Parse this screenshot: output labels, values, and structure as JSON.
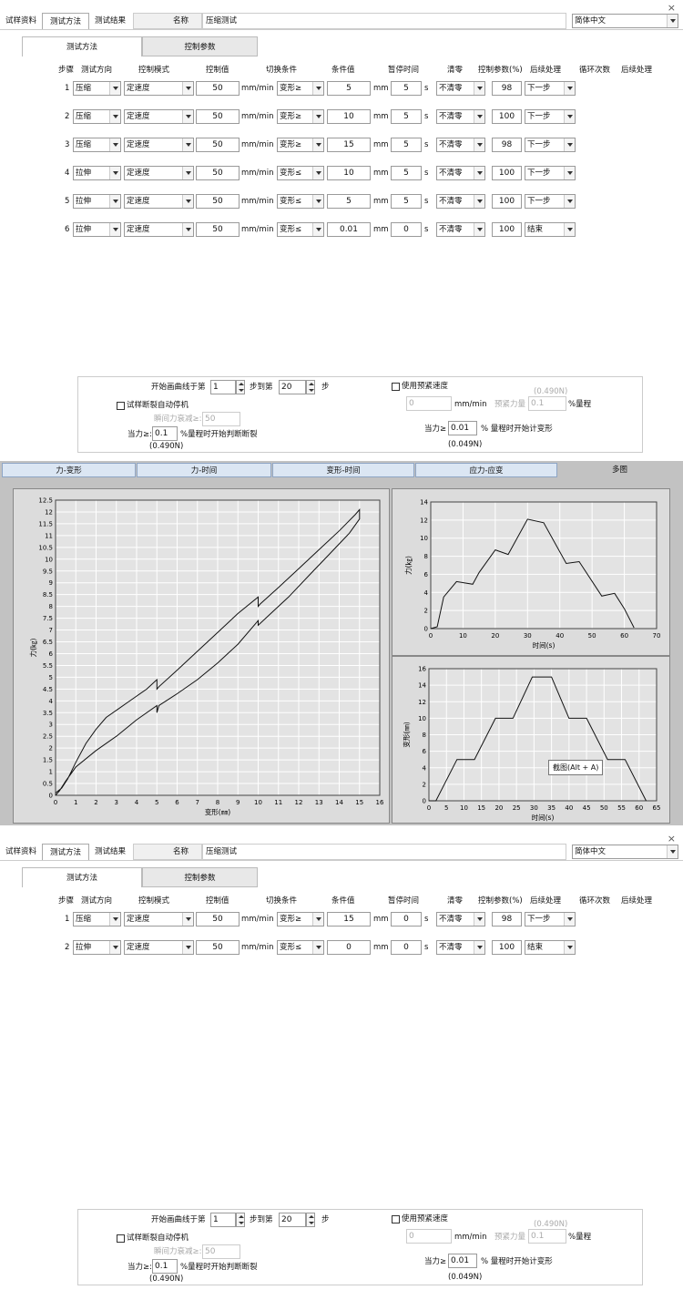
{
  "top": {
    "tabs": [
      "试样资料",
      "测试方法",
      "测试结果"
    ],
    "name_label": "名称",
    "name_value": "压缩测试",
    "language": "简体中文",
    "subtabs": [
      "测试方法",
      "控制参数"
    ],
    "headers": [
      "步骤",
      "测试方向",
      "控制模式",
      "控制值",
      "切换条件",
      "条件值",
      "暂停时间",
      "清零",
      "控制参数(%)",
      "后续处理",
      "循环次数",
      "后续处理"
    ],
    "rows": [
      {
        "step": "1",
        "dir": "压缩",
        "mode": "定速度",
        "ctrl": "50",
        "unit": "mm/min",
        "cond": "变形≥",
        "condval": "5",
        "condunit": "mm",
        "pause": "5",
        "pauseunit": "s",
        "zero": "不清零",
        "param": "98",
        "next": "下一步"
      },
      {
        "step": "2",
        "dir": "压缩",
        "mode": "定速度",
        "ctrl": "50",
        "unit": "mm/min",
        "cond": "变形≥",
        "condval": "10",
        "condunit": "mm",
        "pause": "5",
        "pauseunit": "s",
        "zero": "不清零",
        "param": "100",
        "next": "下一步"
      },
      {
        "step": "3",
        "dir": "压缩",
        "mode": "定速度",
        "ctrl": "50",
        "unit": "mm/min",
        "cond": "变形≥",
        "condval": "15",
        "condunit": "mm",
        "pause": "5",
        "pauseunit": "s",
        "zero": "不清零",
        "param": "98",
        "next": "下一步"
      },
      {
        "step": "4",
        "dir": "拉伸",
        "mode": "定速度",
        "ctrl": "50",
        "unit": "mm/min",
        "cond": "变形≤",
        "condval": "10",
        "condunit": "mm",
        "pause": "5",
        "pauseunit": "s",
        "zero": "不清零",
        "param": "100",
        "next": "下一步"
      },
      {
        "step": "5",
        "dir": "拉伸",
        "mode": "定速度",
        "ctrl": "50",
        "unit": "mm/min",
        "cond": "变形≤",
        "condval": "5",
        "condunit": "mm",
        "pause": "5",
        "pauseunit": "s",
        "zero": "不清零",
        "param": "100",
        "next": "下一步"
      },
      {
        "step": "6",
        "dir": "拉伸",
        "mode": "定速度",
        "ctrl": "50",
        "unit": "mm/min",
        "cond": "变形≤",
        "condval": "0.01",
        "condunit": "mm",
        "pause": "0",
        "pauseunit": "s",
        "zero": "不清零",
        "param": "100",
        "next": "结束"
      }
    ],
    "bottom": {
      "start_label": "开始画曲线于第",
      "start_val": "1",
      "to_label": "步到第",
      "to_val": "20",
      "step_unit": "步",
      "break_stop": "试样断裂自动停机",
      "decay_label": "瞬间力衰减≥:",
      "decay_val": "50",
      "force_label": "当力≥:",
      "force_val": "0.1",
      "force_suffix": "%量程时开始判断断裂",
      "force_sub": "(0.490N)",
      "preload_chk": "使用预紧速度",
      "preload_note": "(0.490N)",
      "preload_speed": "0",
      "preload_unit": "mm/min",
      "preload_amount_label": "预紧力量",
      "preload_amount": "0.1",
      "preload_pct": "%量程",
      "deform_label": "当力≥",
      "deform_val": "0.01",
      "deform_suffix": "% 量程时开始计变形",
      "deform_sub": "(0.049N)"
    }
  },
  "charts": {
    "tabs": [
      "力-变形",
      "力-时间",
      "变形-时间",
      "应力-应变",
      "多图"
    ],
    "tooltip": "截图(Alt + A)"
  },
  "chart_data": [
    {
      "type": "line",
      "xlabel": "变形(㎜)",
      "ylabel": "力(㎏)",
      "xlim": [
        0,
        16
      ],
      "ylim": [
        0,
        12.5
      ],
      "xticks": [
        0,
        1,
        2,
        3,
        4,
        5,
        6,
        7,
        8,
        9,
        10,
        11,
        12,
        13,
        14,
        15,
        16
      ],
      "yticks": [
        0,
        0.5,
        1,
        1.5,
        2,
        2.5,
        3,
        3.5,
        4,
        4.5,
        5,
        5.5,
        6,
        6.5,
        7,
        7.5,
        8,
        8.5,
        9,
        9.5,
        10,
        10.5,
        11,
        11.5,
        12,
        12.5
      ],
      "series": [
        {
          "values": [
            [
              0,
              0.1
            ],
            [
              0.3,
              0.3
            ],
            [
              0.6,
              0.7
            ],
            [
              1,
              1.4
            ],
            [
              1.5,
              2.2
            ],
            [
              2,
              2.8
            ],
            [
              2.5,
              3.3
            ],
            [
              3,
              3.6
            ],
            [
              3.5,
              3.9
            ],
            [
              4,
              4.2
            ],
            [
              4.5,
              4.5
            ],
            [
              5,
              4.9
            ],
            [
              5,
              4.5
            ],
            [
              5.1,
              4.6
            ],
            [
              6,
              5.3
            ],
            [
              7,
              6.1
            ],
            [
              8,
              6.9
            ],
            [
              9,
              7.7
            ],
            [
              10,
              8.4
            ],
            [
              10,
              8.0
            ],
            [
              10.1,
              8.1
            ],
            [
              11,
              8.8
            ],
            [
              12,
              9.6
            ],
            [
              13,
              10.4
            ],
            [
              14,
              11.2
            ],
            [
              14.8,
              11.9
            ],
            [
              15,
              12.1
            ],
            [
              15,
              11.7
            ],
            [
              14.5,
              11.1
            ],
            [
              13.5,
              10.2
            ],
            [
              12.5,
              9.3
            ],
            [
              11.5,
              8.4
            ],
            [
              10.5,
              7.6
            ],
            [
              10,
              7.2
            ],
            [
              10,
              7.4
            ],
            [
              9,
              6.4
            ],
            [
              8,
              5.6
            ],
            [
              7,
              4.9
            ],
            [
              6,
              4.3
            ],
            [
              5.1,
              3.8
            ],
            [
              5,
              3.5
            ],
            [
              5,
              3.8
            ],
            [
              4,
              3.2
            ],
            [
              3,
              2.5
            ],
            [
              2,
              1.9
            ],
            [
              1,
              1.2
            ],
            [
              0.5,
              0.6
            ],
            [
              0.2,
              0.2
            ],
            [
              0,
              0
            ]
          ]
        }
      ]
    },
    {
      "type": "line",
      "xlabel": "时间(s)",
      "ylabel": "力(㎏)",
      "xlim": [
        0,
        70
      ],
      "ylim": [
        0,
        14
      ],
      "xticks": [
        0,
        10,
        20,
        30,
        40,
        50,
        60,
        70
      ],
      "yticks": [
        0,
        2,
        4,
        6,
        8,
        10,
        12,
        14
      ],
      "series": [
        {
          "values": [
            [
              0,
              0
            ],
            [
              2,
              0.2
            ],
            [
              4,
              3.5
            ],
            [
              8,
              5.2
            ],
            [
              13,
              4.9
            ],
            [
              15,
              6.2
            ],
            [
              20,
              8.7
            ],
            [
              24,
              8.2
            ],
            [
              30,
              12.1
            ],
            [
              35,
              11.7
            ],
            [
              42,
              7.2
            ],
            [
              46,
              7.4
            ],
            [
              53,
              3.6
            ],
            [
              57,
              3.9
            ],
            [
              60,
              2.2
            ],
            [
              63,
              0.1
            ]
          ]
        }
      ]
    },
    {
      "type": "line",
      "xlabel": "时间(s)",
      "ylabel": "变形(㎜)",
      "xlim": [
        0,
        65
      ],
      "ylim": [
        0,
        16
      ],
      "xticks": [
        0,
        5,
        10,
        15,
        20,
        25,
        30,
        35,
        40,
        45,
        50,
        55,
        60,
        65
      ],
      "yticks": [
        0,
        2,
        4,
        6,
        8,
        10,
        12,
        14,
        16
      ],
      "series": [
        {
          "values": [
            [
              0,
              0
            ],
            [
              2,
              0
            ],
            [
              8,
              5
            ],
            [
              13,
              5
            ],
            [
              19,
              10
            ],
            [
              24,
              10
            ],
            [
              29.5,
              15
            ],
            [
              35,
              15
            ],
            [
              40,
              10
            ],
            [
              45,
              10
            ],
            [
              51,
              5
            ],
            [
              56,
              5
            ],
            [
              62,
              0
            ]
          ]
        }
      ]
    }
  ],
  "bottomwin": {
    "tabs": [
      "试样资料",
      "测试方法",
      "测试结果"
    ],
    "name_label": "名称",
    "name_value": "压缩测试",
    "language": "简体中文",
    "subtabs": [
      "测试方法",
      "控制参数"
    ],
    "headers": [
      "步骤",
      "测试方向",
      "控制模式",
      "控制值",
      "切换条件",
      "条件值",
      "暂停时间",
      "清零",
      "控制参数(%)",
      "后续处理",
      "循环次数",
      "后续处理"
    ],
    "rows": [
      {
        "step": "1",
        "dir": "压缩",
        "mode": "定速度",
        "ctrl": "50",
        "unit": "mm/min",
        "cond": "变形≥",
        "condval": "15",
        "condunit": "mm",
        "pause": "0",
        "pauseunit": "s",
        "zero": "不清零",
        "param": "98",
        "next": "下一步"
      },
      {
        "step": "2",
        "dir": "拉伸",
        "mode": "定速度",
        "ctrl": "50",
        "unit": "mm/min",
        "cond": "变形≤",
        "condval": "0",
        "condunit": "mm",
        "pause": "0",
        "pauseunit": "s",
        "zero": "不清零",
        "param": "100",
        "next": "结束"
      }
    ],
    "bottom": {
      "start_label": "开始画曲线于第",
      "start_val": "1",
      "to_label": "步到第",
      "to_val": "20",
      "step_unit": "步",
      "break_stop": "试样断裂自动停机",
      "decay_label": "瞬间力衰减≥:",
      "decay_val": "50",
      "force_label": "当力≥:",
      "force_val": "0.1",
      "force_suffix": "%量程时开始判断断裂",
      "force_sub": "(0.490N)",
      "preload_chk": "使用预紧速度",
      "preload_note": "(0.490N)",
      "preload_speed": "0",
      "preload_unit": "mm/min",
      "preload_amount_label": "预紧力量",
      "preload_amount": "0.1",
      "preload_pct": "%量程",
      "deform_label": "当力≥",
      "deform_val": "0.01",
      "deform_suffix": "% 量程时开始计变形",
      "deform_sub": "(0.049N)"
    }
  }
}
